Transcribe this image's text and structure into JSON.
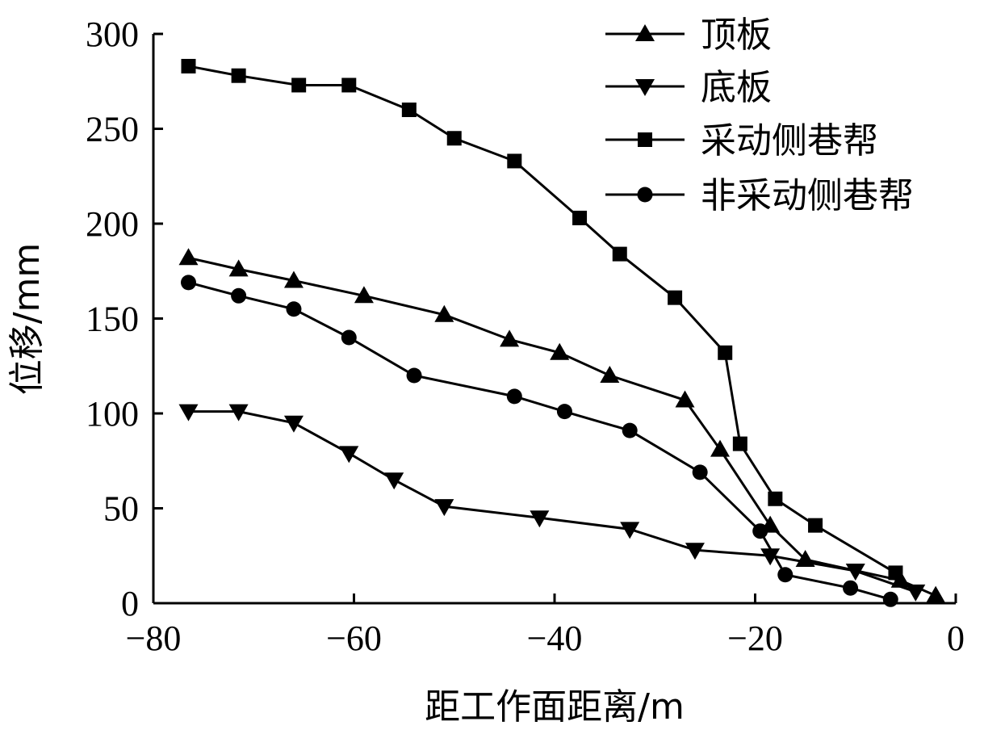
{
  "chart_data": {
    "type": "line",
    "xlabel": "距工作面距离/m",
    "ylabel": "位移/mm",
    "xlim": [
      -80,
      0
    ],
    "ylim": [
      0,
      300
    ],
    "xticks": [
      -80,
      -60,
      -40,
      -20,
      0
    ],
    "yticks": [
      0,
      50,
      100,
      150,
      200,
      250,
      300
    ],
    "xtick_labels": [
      "−80",
      "−60",
      "−40",
      "−20",
      "0"
    ],
    "ytick_labels": [
      "0",
      "50",
      "100",
      "150",
      "200",
      "250",
      "300"
    ],
    "grid": false,
    "legend_position": "top-right",
    "series": [
      {
        "name": "顶板",
        "marker": "triangle-up",
        "x": [
          -76.5,
          -71.5,
          -66,
          -59,
          -51,
          -44.5,
          -39.5,
          -34.5,
          -27,
          -23.5,
          -18.5,
          -15,
          -5.5,
          -2
        ],
        "y": [
          182,
          176,
          170,
          162,
          152,
          139,
          132,
          120,
          107,
          81,
          41,
          23,
          12,
          4
        ]
      },
      {
        "name": "底板",
        "marker": "triangle-down",
        "x": [
          -76.5,
          -71.5,
          -66,
          -60.5,
          -56,
          -51,
          -41.5,
          -32.5,
          -26,
          -18.5,
          -10,
          -4
        ],
        "y": [
          101,
          101,
          95,
          79,
          65,
          51,
          45,
          39,
          28,
          25,
          17,
          6
        ]
      },
      {
        "name": "采动侧巷帮",
        "marker": "square",
        "x": [
          -76.5,
          -71.5,
          -65.5,
          -60.5,
          -54.5,
          -50,
          -44,
          -37.5,
          -33.5,
          -28,
          -23,
          -21.5,
          -18,
          -14,
          -6
        ],
        "y": [
          283,
          278,
          273,
          273,
          260,
          245,
          233,
          203,
          184,
          161,
          132,
          84,
          55,
          41,
          16
        ]
      },
      {
        "name": "非采动侧巷帮",
        "marker": "circle",
        "x": [
          -76.5,
          -71.5,
          -66,
          -60.5,
          -54,
          -44,
          -39,
          -32.5,
          -25.5,
          -19.5,
          -17,
          -10.5,
          -6.5
        ],
        "y": [
          169,
          162,
          155,
          140,
          120,
          109,
          101,
          91,
          69,
          38,
          15,
          8,
          2
        ]
      }
    ]
  }
}
